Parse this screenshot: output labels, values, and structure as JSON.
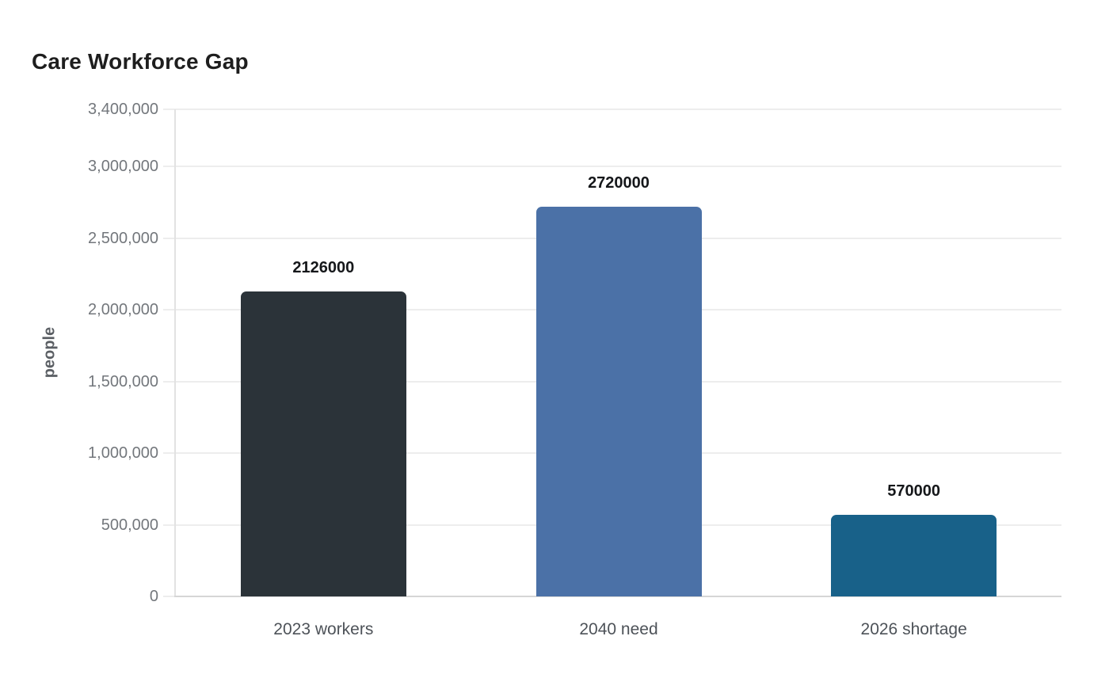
{
  "chart_data": {
    "type": "bar",
    "title": "Care Workforce Gap",
    "xlabel": "",
    "ylabel": "people",
    "categories": [
      "2023 workers",
      "2040 need",
      "2026 shortage"
    ],
    "values": [
      2126000,
      2720000,
      570000
    ],
    "value_labels": [
      "2126000",
      "2720000",
      "570000"
    ],
    "bar_colors": [
      "#2b3339",
      "#4b71a7",
      "#186189"
    ],
    "ylim": [
      0,
      3400000
    ],
    "yticks": [
      0,
      500000,
      1000000,
      1500000,
      2000000,
      2500000,
      3000000,
      3400000
    ],
    "ytick_labels": [
      "0",
      "500,000",
      "1,000,000",
      "1,500,000",
      "2,000,000",
      "2,500,000",
      "3,000,000",
      "3,400,000"
    ],
    "grid": "horizontal",
    "legend": "none",
    "colors": {
      "background": "#ffffff",
      "gridline": "#ededed",
      "axis_line_x": "#d6d6d6",
      "axis_line_y": "#e2e2e2",
      "tick_text": "#73777c",
      "category_text": "#4d5258",
      "value_text": "#15171a",
      "title_text": "#1e1e1e",
      "ylabel_text": "#5b5f64"
    }
  }
}
